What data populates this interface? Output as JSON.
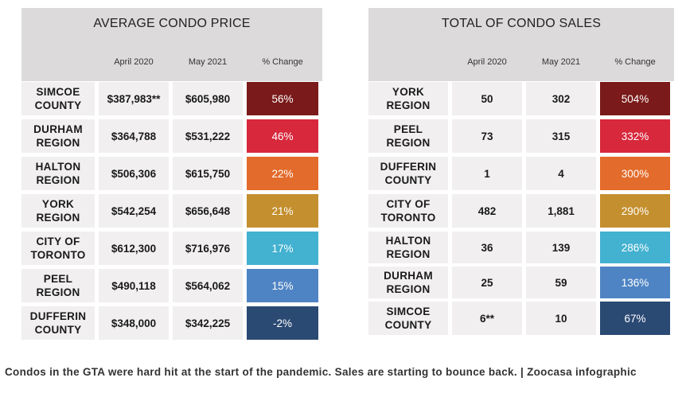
{
  "price": {
    "title": "AVERAGE CONDO PRICE",
    "headers": [
      "April 2020",
      "May 2021",
      "% Change"
    ],
    "rows": [
      {
        "name_l1": "SIMCOE",
        "name_l2": "COUNTY",
        "apr": "$387,983**",
        "may": "$605,980",
        "pct": "56%",
        "color": "#7a1a1a"
      },
      {
        "name_l1": "DURHAM",
        "name_l2": "REGION",
        "apr": "$364,788",
        "may": "$531,222",
        "pct": "46%",
        "color": "#d7283c"
      },
      {
        "name_l1": "HALTON",
        "name_l2": "REGION",
        "apr": "$506,306",
        "may": "$615,750",
        "pct": "22%",
        "color": "#e36b2b"
      },
      {
        "name_l1": "YORK",
        "name_l2": "REGION",
        "apr": "$542,254",
        "may": "$656,648",
        "pct": "21%",
        "color": "#c48f2e"
      },
      {
        "name_l1": "CITY OF",
        "name_l2": "TORONTO",
        "apr": "$612,300",
        "may": "$716,976",
        "pct": "17%",
        "color": "#43b1d0"
      },
      {
        "name_l1": "PEEL",
        "name_l2": "REGION",
        "apr": "$490,118",
        "may": "$564,062",
        "pct": "15%",
        "color": "#4f84c4"
      },
      {
        "name_l1": "DUFFERIN",
        "name_l2": "COUNTY",
        "apr": "$348,000",
        "may": "$342,225",
        "pct": "-2%",
        "color": "#2b4a73"
      }
    ]
  },
  "sales": {
    "title": "TOTAL OF CONDO SALES",
    "headers": [
      "April 2020",
      "May 2021",
      "% Change"
    ],
    "rows": [
      {
        "name_l1": "YORK",
        "name_l2": "REGION",
        "apr": "50",
        "may": "302",
        "pct": "504%",
        "color": "#7a1a1a"
      },
      {
        "name_l1": "PEEL",
        "name_l2": "REGION",
        "apr": "73",
        "may": "315",
        "pct": "332%",
        "color": "#d7283c"
      },
      {
        "name_l1": "DUFFERIN",
        "name_l2": "COUNTY",
        "apr": "1",
        "may": "4",
        "pct": "300%",
        "color": "#e36b2b"
      },
      {
        "name_l1": "CITY OF",
        "name_l2": "TORONTO",
        "apr": "482",
        "may": "1,881",
        "pct": "290%",
        "color": "#c48f2e"
      },
      {
        "name_l1": "HALTON",
        "name_l2": "REGION",
        "apr": "36",
        "may": "139",
        "pct": "286%",
        "color": "#43b1d0"
      },
      {
        "name_l1": "DURHAM",
        "name_l2": "REGION",
        "apr": "25",
        "may": "59",
        "pct": "136%",
        "color": "#4f84c4"
      },
      {
        "name_l1": "SIMCOE",
        "name_l2": "COUNTY",
        "apr": "6**",
        "may": "10",
        "pct": "67%",
        "color": "#2b4a73"
      }
    ]
  },
  "caption": "Condos in the GTA were hard hit at the start of the pandemic. Sales are starting to bounce back. | Zoocasa infographic"
}
